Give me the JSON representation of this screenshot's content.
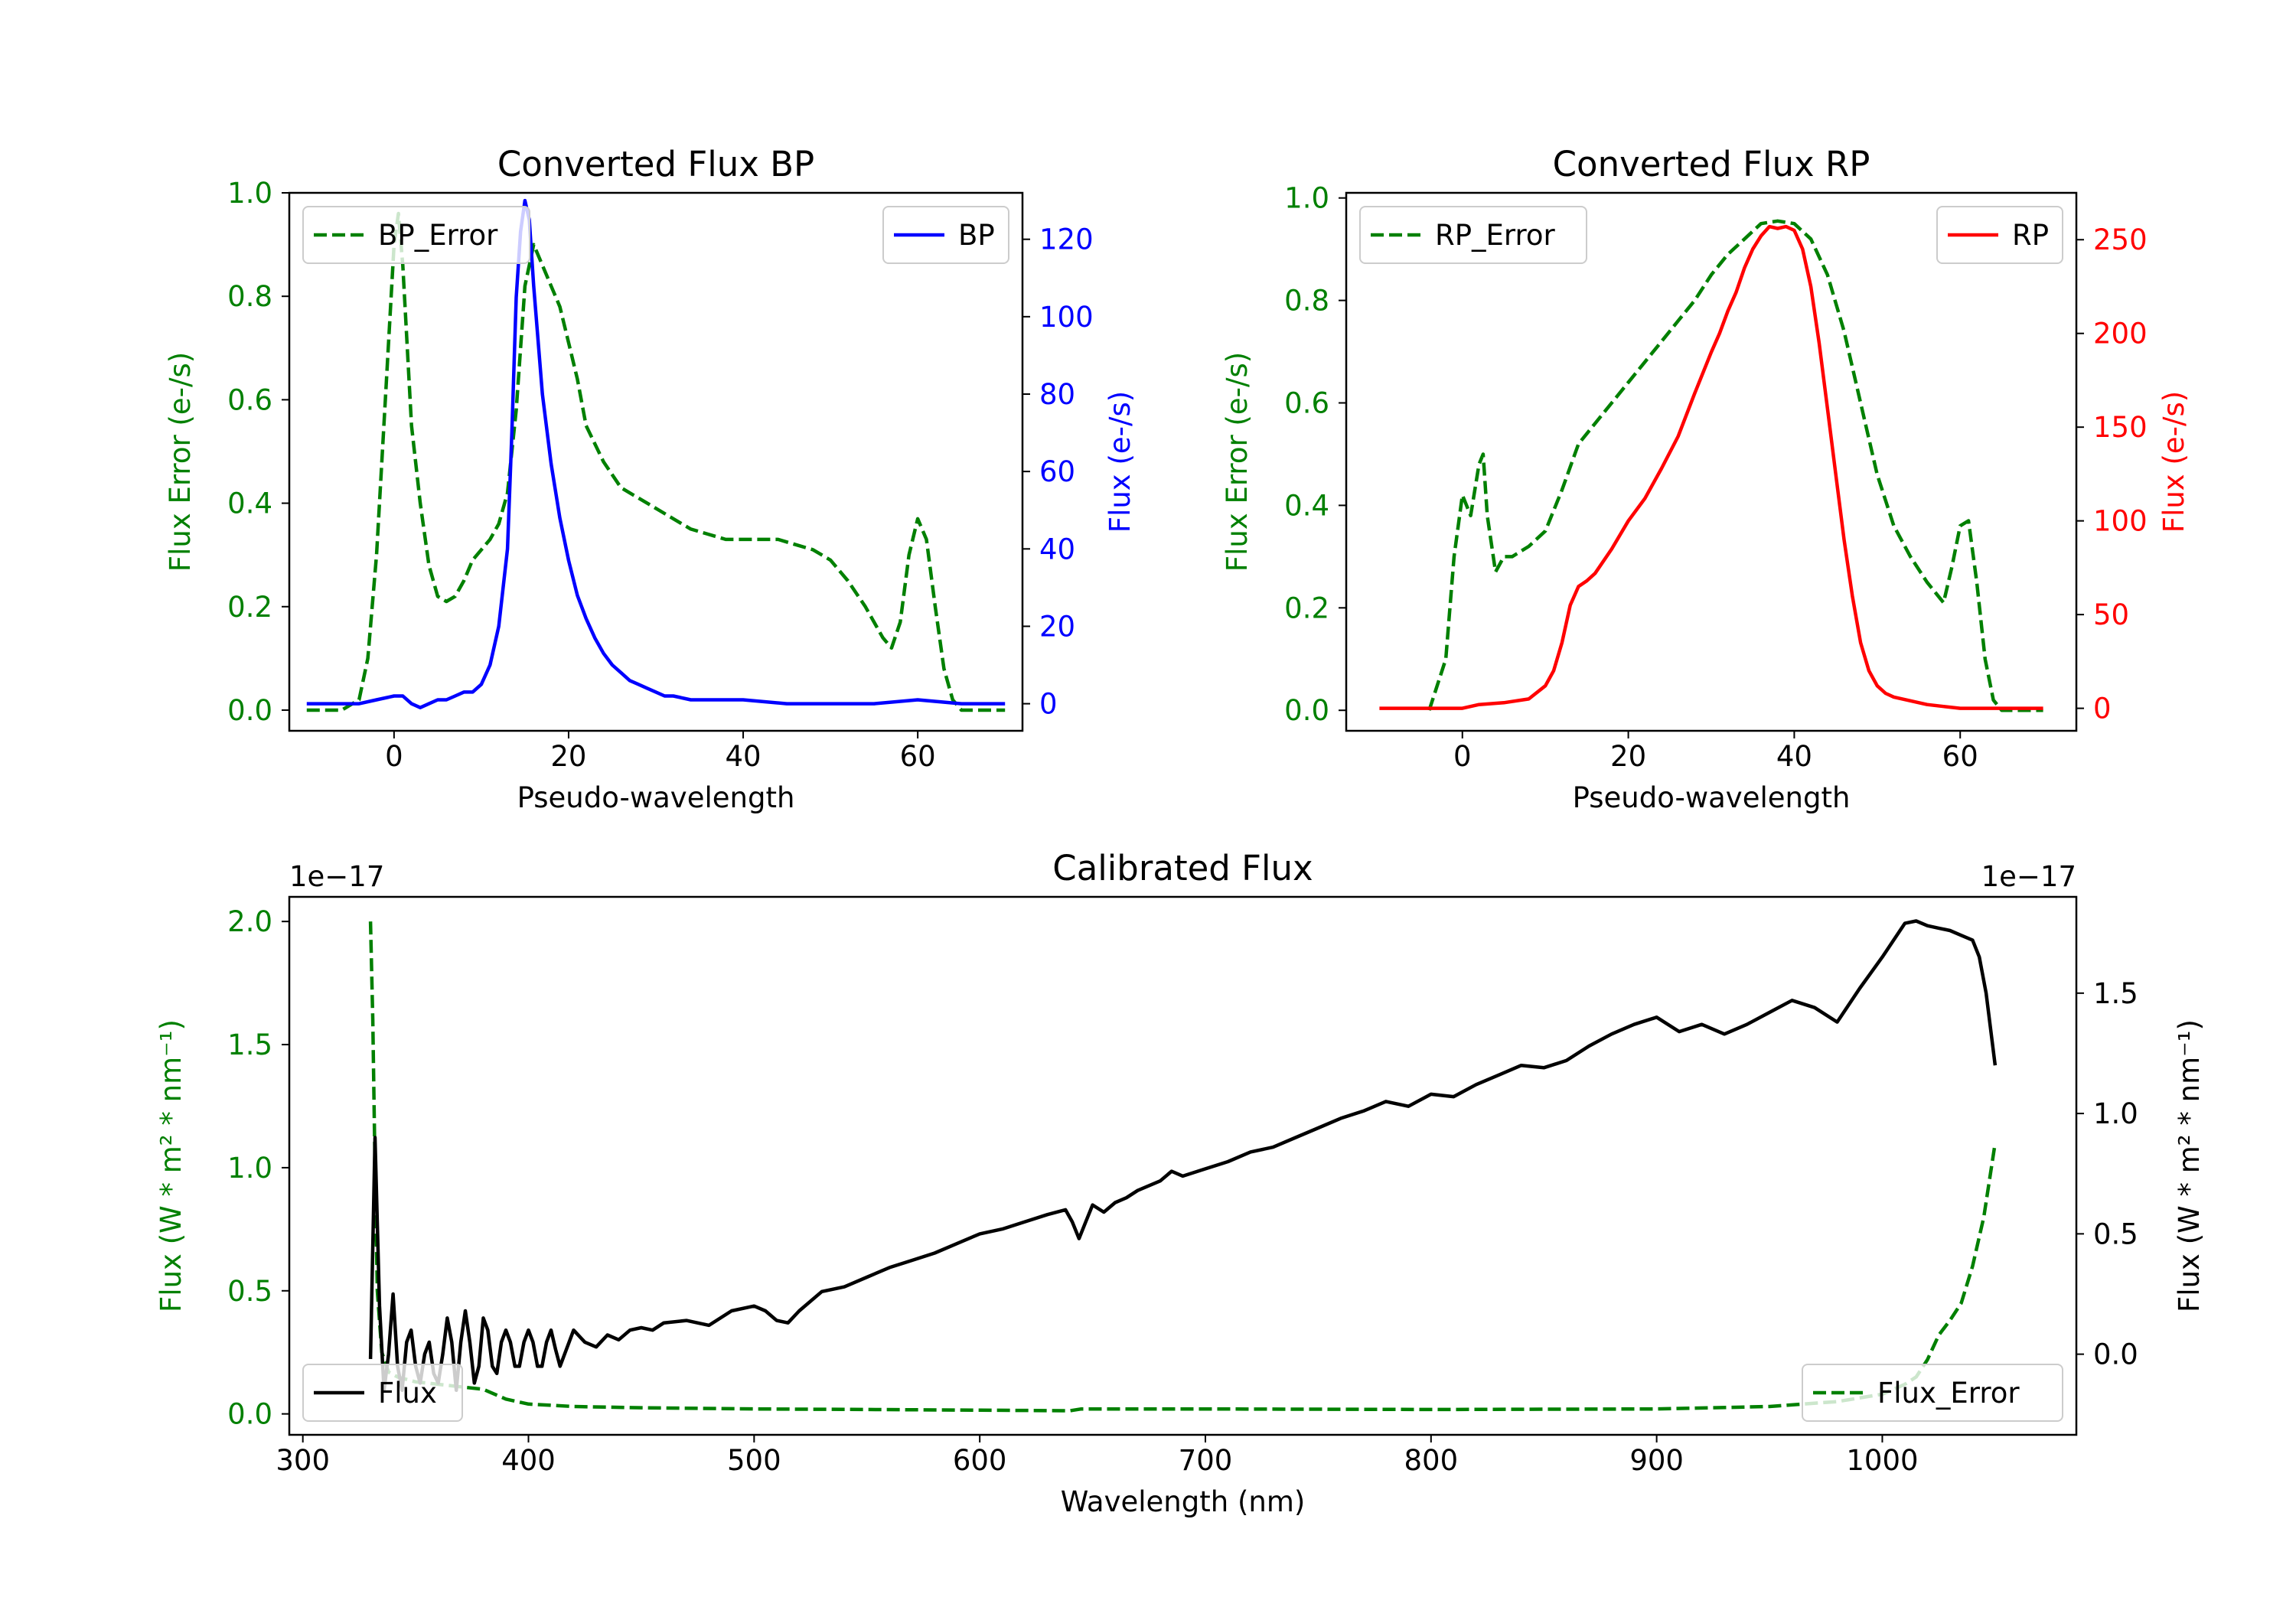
{
  "colors": {
    "error": "#008000",
    "bp": "#0000ff",
    "rp": "#ff0000",
    "flux": "#000000",
    "axis": "#000000",
    "legend_border": "#cccccc"
  },
  "chart_data": [
    {
      "id": "bp",
      "type": "line",
      "title": "Converted Flux BP",
      "xlabel": "Pseudo-wavelength",
      "ylabel_left": "Flux Error (e-/s)",
      "ylabel_right": "Flux (e-/s)",
      "xlim": [
        -12,
        72
      ],
      "ylim_left": [
        -0.04,
        1.0
      ],
      "ylim_right": [
        -7,
        132
      ],
      "xticks": [
        0,
        20,
        40,
        60
      ],
      "xtick_labels": [
        "0",
        "20",
        "40",
        "60"
      ],
      "yticks_left": [
        0.0,
        0.2,
        0.4,
        0.6,
        0.8,
        1.0
      ],
      "ytick_labels_left": [
        "0.0",
        "0.2",
        "0.4",
        "0.6",
        "0.8",
        "1.0"
      ],
      "yticks_right": [
        0,
        20,
        40,
        60,
        80,
        100,
        120
      ],
      "ytick_labels_right": [
        "0",
        "20",
        "40",
        "60",
        "80",
        "100",
        "120"
      ],
      "legend_left": "BP_Error",
      "legend_right": "BP",
      "series": [
        {
          "name": "BP_Error",
          "axis": "left",
          "style": "dashed",
          "x": [
            -10,
            -6,
            -4,
            -3,
            -2,
            -1,
            0,
            0.5,
            1,
            2,
            3,
            4,
            5,
            6,
            7,
            8,
            9,
            10,
            11,
            12,
            13,
            14,
            15,
            16,
            17,
            18,
            19,
            20,
            21,
            22,
            24,
            26,
            28,
            30,
            32,
            34,
            36,
            38,
            40,
            42,
            44,
            46,
            48,
            50,
            52,
            54,
            56,
            57,
            58,
            59,
            60,
            61,
            62,
            63,
            64,
            65,
            66,
            68,
            70
          ],
          "y": [
            0.0,
            0.0,
            0.02,
            0.1,
            0.3,
            0.6,
            0.9,
            0.96,
            0.86,
            0.55,
            0.4,
            0.28,
            0.22,
            0.21,
            0.22,
            0.25,
            0.29,
            0.31,
            0.33,
            0.36,
            0.42,
            0.58,
            0.82,
            0.9,
            0.86,
            0.82,
            0.78,
            0.71,
            0.64,
            0.55,
            0.48,
            0.43,
            0.41,
            0.39,
            0.37,
            0.35,
            0.34,
            0.33,
            0.33,
            0.33,
            0.33,
            0.32,
            0.31,
            0.29,
            0.25,
            0.2,
            0.14,
            0.12,
            0.17,
            0.3,
            0.37,
            0.33,
            0.2,
            0.08,
            0.02,
            0.0,
            0.0,
            0.0,
            0.0
          ]
        },
        {
          "name": "BP",
          "axis": "right",
          "style": "solid",
          "x": [
            -10,
            -6,
            -4,
            -2,
            0,
            1,
            2,
            3,
            4,
            5,
            6,
            7,
            8,
            9,
            10,
            11,
            12,
            13,
            13.5,
            14,
            14.5,
            15,
            15.5,
            16,
            17,
            18,
            19,
            20,
            21,
            22,
            23,
            24,
            25,
            26,
            27,
            28,
            29,
            30,
            31,
            32,
            34,
            36,
            40,
            45,
            50,
            55,
            60,
            65,
            70
          ],
          "y": [
            0,
            0,
            0,
            1,
            2,
            2,
            0,
            -1,
            0,
            1,
            1,
            2,
            3,
            3,
            5,
            10,
            20,
            40,
            70,
            105,
            122,
            130,
            125,
            108,
            80,
            62,
            48,
            37,
            28,
            22,
            17,
            13,
            10,
            8,
            6,
            5,
            4,
            3,
            2,
            2,
            1,
            1,
            1,
            0,
            0,
            0,
            1,
            0,
            0
          ]
        }
      ]
    },
    {
      "id": "rp",
      "type": "line",
      "title": "Converted Flux RP",
      "xlabel": "Pseudo-wavelength",
      "ylabel_left": "Flux Error (e-/s)",
      "ylabel_right": "Flux (e-/s)",
      "xlim": [
        -14,
        74
      ],
      "ylim_left": [
        -0.04,
        1.01
      ],
      "ylim_right": [
        -12,
        275
      ],
      "xticks": [
        0,
        20,
        40,
        60
      ],
      "xtick_labels": [
        "0",
        "20",
        "40",
        "60"
      ],
      "yticks_left": [
        0.0,
        0.2,
        0.4,
        0.6,
        0.8,
        1.0
      ],
      "ytick_labels_left": [
        "0.0",
        "0.2",
        "0.4",
        "0.6",
        "0.8",
        "1.0"
      ],
      "yticks_right": [
        0,
        50,
        100,
        150,
        200,
        250
      ],
      "ytick_labels_right": [
        "0",
        "50",
        "100",
        "150",
        "200",
        "250"
      ],
      "legend_left": "RP_Error",
      "legend_right": "RP",
      "series": [
        {
          "name": "RP_Error",
          "axis": "left",
          "style": "dashed",
          "x": [
            -4,
            -2,
            -1,
            0,
            1,
            2,
            2.5,
            3,
            4,
            5,
            6,
            8,
            10,
            12,
            14,
            16,
            18,
            20,
            22,
            24,
            26,
            28,
            30,
            32,
            34,
            36,
            38,
            40,
            42,
            44,
            46,
            48,
            50,
            52,
            54,
            56,
            57,
            58,
            59,
            60,
            61,
            62,
            63,
            64,
            65,
            66,
            68,
            70
          ],
          "y": [
            0.0,
            0.1,
            0.3,
            0.42,
            0.38,
            0.48,
            0.5,
            0.38,
            0.27,
            0.3,
            0.3,
            0.32,
            0.35,
            0.43,
            0.52,
            0.56,
            0.6,
            0.64,
            0.68,
            0.72,
            0.76,
            0.8,
            0.85,
            0.89,
            0.92,
            0.95,
            0.955,
            0.95,
            0.92,
            0.85,
            0.74,
            0.6,
            0.46,
            0.36,
            0.3,
            0.25,
            0.23,
            0.21,
            0.28,
            0.36,
            0.37,
            0.25,
            0.1,
            0.02,
            0.0,
            0.0,
            0.0,
            0.0
          ]
        },
        {
          "name": "RP",
          "axis": "right",
          "style": "solid",
          "x": [
            -10,
            -5,
            0,
            2,
            5,
            8,
            10,
            11,
            12,
            13,
            14,
            15,
            16,
            18,
            20,
            22,
            24,
            26,
            28,
            30,
            31,
            32,
            33,
            34,
            35,
            36,
            37,
            38,
            39,
            40,
            41,
            42,
            43,
            44,
            45,
            46,
            47,
            48,
            49,
            50,
            51,
            52,
            54,
            56,
            58,
            60,
            62,
            65,
            70
          ],
          "y": [
            0,
            0,
            0,
            2,
            3,
            5,
            12,
            20,
            35,
            55,
            65,
            68,
            72,
            85,
            100,
            112,
            128,
            145,
            168,
            190,
            200,
            212,
            222,
            235,
            245,
            252,
            257,
            256,
            257,
            255,
            245,
            225,
            195,
            160,
            125,
            90,
            60,
            35,
            20,
            12,
            8,
            6,
            4,
            2,
            1,
            0,
            0,
            0,
            0
          ]
        }
      ]
    },
    {
      "id": "cal",
      "type": "line",
      "title": "Calibrated Flux",
      "xlabel": "Wavelength (nm)",
      "ylabel_left": "Flux (W * m² * nm⁻¹)",
      "ylabel_right": "Flux (W * m² * nm⁻¹)",
      "offset_left": "1e−17",
      "offset_right": "1e−17",
      "xlim": [
        294,
        1086
      ],
      "ylim_left": [
        -0.085,
        2.1
      ],
      "ylim_right": [
        -0.335,
        1.9
      ],
      "xticks": [
        300,
        400,
        500,
        600,
        700,
        800,
        900,
        1000
      ],
      "xtick_labels": [
        "300",
        "400",
        "500",
        "600",
        "700",
        "800",
        "900",
        "1000"
      ],
      "yticks_left": [
        0.0,
        0.5,
        1.0,
        1.5,
        2.0
      ],
      "ytick_labels_left": [
        "0.0",
        "0.5",
        "1.0",
        "1.5",
        "2.0"
      ],
      "yticks_right": [
        0.0,
        0.5,
        1.0,
        1.5
      ],
      "ytick_labels_right": [
        "0.0",
        "0.5",
        "1.0",
        "1.5"
      ],
      "legend_left": "Flux",
      "legend_right": "Flux_Error",
      "series": [
        {
          "name": "Flux_Error",
          "axis": "left",
          "style": "dashed",
          "x": [
            330,
            331,
            332,
            333,
            335,
            338,
            342,
            350,
            360,
            370,
            380,
            390,
            400,
            420,
            450,
            500,
            550,
            600,
            640,
            645,
            700,
            800,
            900,
            950,
            980,
            1000,
            1010,
            1015,
            1020,
            1025,
            1030,
            1035,
            1040,
            1045,
            1050
          ],
          "y": [
            2.0,
            1.6,
            1.0,
            0.5,
            0.25,
            0.17,
            0.15,
            0.13,
            0.12,
            0.11,
            0.1,
            0.06,
            0.04,
            0.03,
            0.025,
            0.02,
            0.018,
            0.015,
            0.013,
            0.02,
            0.02,
            0.018,
            0.02,
            0.03,
            0.05,
            0.08,
            0.12,
            0.15,
            0.22,
            0.32,
            0.38,
            0.45,
            0.6,
            0.8,
            1.1
          ]
        },
        {
          "name": "Flux",
          "axis": "right",
          "style": "solid",
          "x": [
            330,
            332,
            334,
            336,
            338,
            340,
            342,
            344,
            346,
            348,
            350,
            352,
            354,
            356,
            358,
            360,
            362,
            364,
            366,
            368,
            370,
            372,
            374,
            376,
            378,
            380,
            382,
            384,
            386,
            388,
            390,
            392,
            394,
            396,
            398,
            400,
            402,
            404,
            406,
            408,
            410,
            412,
            414,
            416,
            418,
            420,
            425,
            430,
            435,
            440,
            445,
            450,
            455,
            460,
            470,
            480,
            490,
            500,
            505,
            510,
            515,
            520,
            530,
            540,
            550,
            560,
            570,
            580,
            590,
            600,
            610,
            620,
            630,
            638,
            641,
            644,
            647,
            650,
            655,
            660,
            665,
            670,
            680,
            685,
            690,
            700,
            710,
            720,
            730,
            740,
            750,
            760,
            770,
            780,
            790,
            800,
            810,
            820,
            830,
            840,
            850,
            860,
            870,
            880,
            890,
            900,
            910,
            920,
            930,
            940,
            950,
            960,
            970,
            980,
            990,
            1000,
            1010,
            1015,
            1020,
            1025,
            1030,
            1035,
            1040,
            1043,
            1046,
            1048,
            1050
          ],
          "y": [
            -0.02,
            0.9,
            0.2,
            -0.15,
            0.0,
            0.25,
            -0.05,
            -0.15,
            0.05,
            0.1,
            -0.05,
            -0.12,
            0.0,
            0.05,
            -0.08,
            -0.12,
            0.0,
            0.15,
            0.05,
            -0.15,
            0.05,
            0.18,
            0.05,
            -0.12,
            -0.05,
            0.15,
            0.1,
            -0.05,
            -0.08,
            0.05,
            0.1,
            0.05,
            -0.05,
            -0.05,
            0.05,
            0.1,
            0.05,
            -0.05,
            -0.05,
            0.05,
            0.1,
            0.02,
            -0.05,
            0.0,
            0.05,
            0.1,
            0.05,
            0.03,
            0.08,
            0.06,
            0.1,
            0.11,
            0.1,
            0.13,
            0.14,
            0.12,
            0.18,
            0.2,
            0.18,
            0.14,
            0.13,
            0.18,
            0.26,
            0.28,
            0.32,
            0.36,
            0.39,
            0.42,
            0.46,
            0.5,
            0.52,
            0.55,
            0.58,
            0.6,
            0.55,
            0.48,
            0.55,
            0.62,
            0.59,
            0.63,
            0.65,
            0.68,
            0.72,
            0.76,
            0.74,
            0.77,
            0.8,
            0.84,
            0.86,
            0.9,
            0.94,
            0.98,
            1.01,
            1.05,
            1.03,
            1.08,
            1.07,
            1.12,
            1.16,
            1.2,
            1.19,
            1.22,
            1.28,
            1.33,
            1.37,
            1.4,
            1.34,
            1.37,
            1.33,
            1.37,
            1.42,
            1.47,
            1.44,
            1.38,
            1.52,
            1.65,
            1.79,
            1.8,
            1.78,
            1.77,
            1.76,
            1.74,
            1.72,
            1.65,
            1.5,
            1.35,
            1.2
          ]
        }
      ]
    }
  ]
}
